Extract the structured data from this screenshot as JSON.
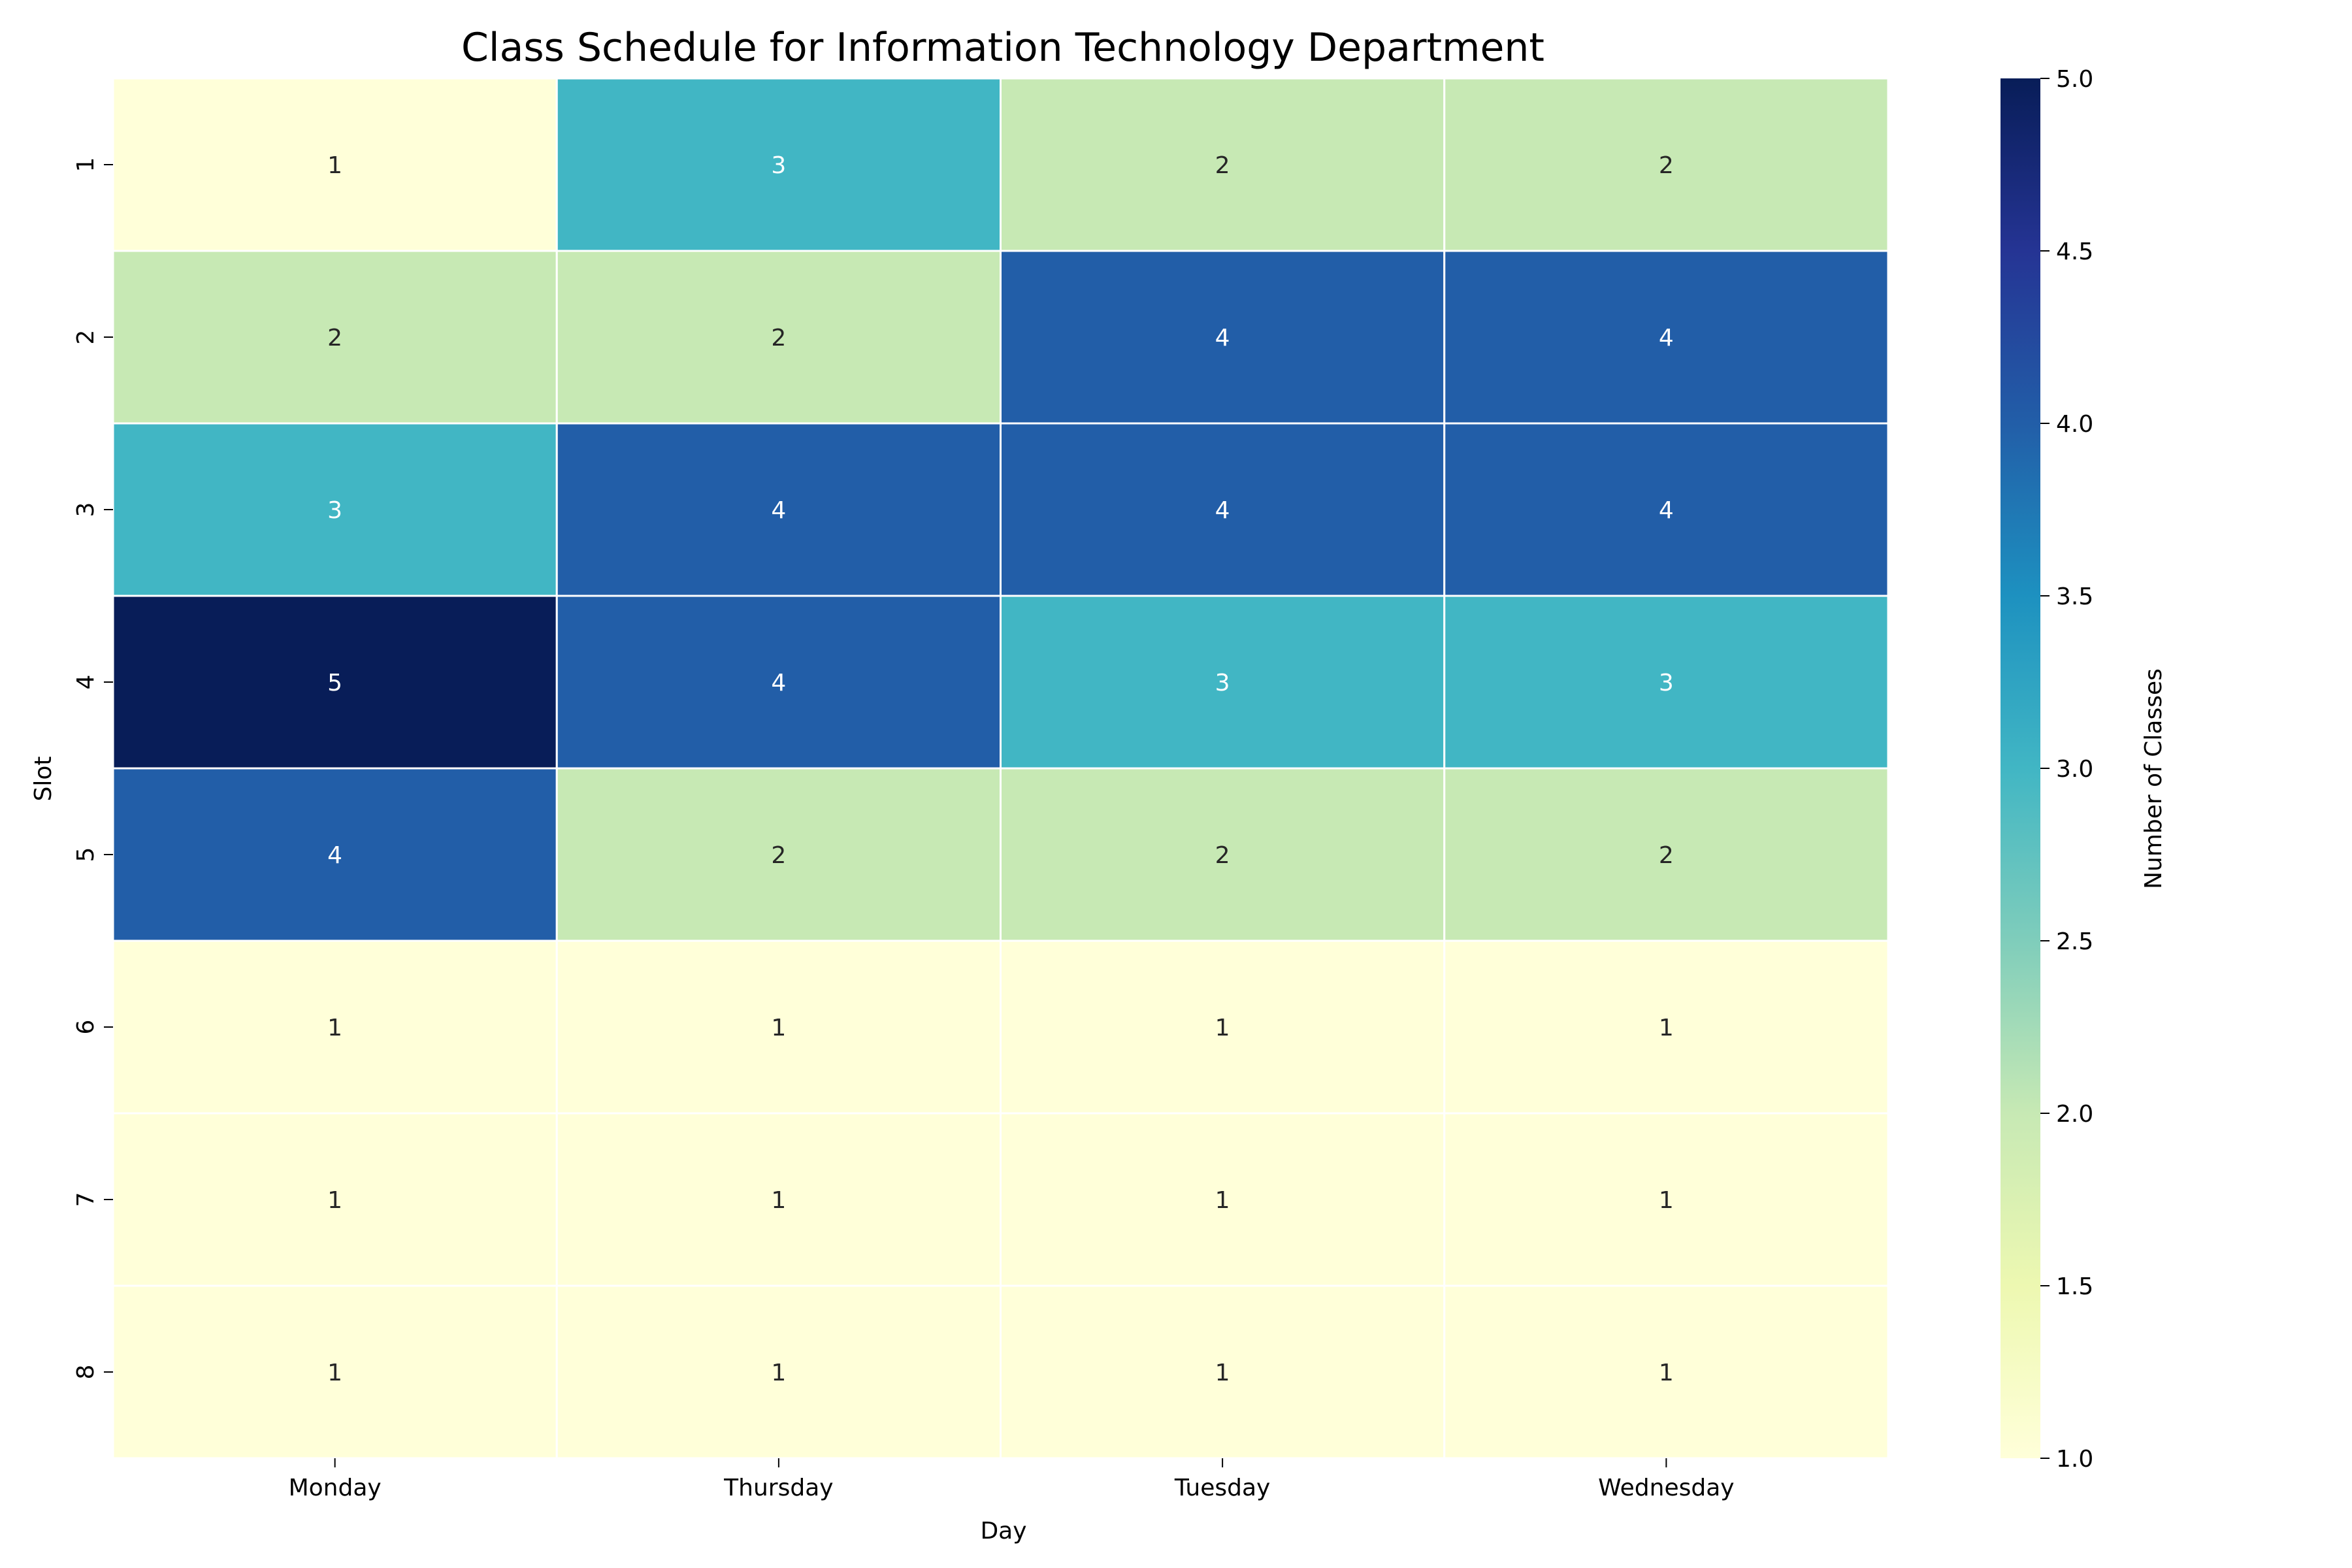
{
  "chart_data": {
    "type": "heatmap",
    "title": "Class Schedule for Information Technology Department",
    "xlabel": "Day",
    "ylabel": "Slot",
    "x_categories": [
      "Monday",
      "Thursday",
      "Tuesday",
      "Wednesday"
    ],
    "y_categories": [
      "1",
      "2",
      "3",
      "4",
      "5",
      "6",
      "7",
      "8"
    ],
    "values": [
      [
        1,
        3,
        2,
        2
      ],
      [
        2,
        2,
        4,
        4
      ],
      [
        3,
        4,
        4,
        4
      ],
      [
        5,
        4,
        3,
        3
      ],
      [
        4,
        2,
        2,
        2
      ],
      [
        1,
        1,
        1,
        1
      ],
      [
        1,
        1,
        1,
        1
      ],
      [
        1,
        1,
        1,
        1
      ]
    ],
    "colorbar": {
      "label": "Number of Classes",
      "range": [
        1.0,
        5.0
      ],
      "ticks": [
        "1.0",
        "1.5",
        "2.0",
        "2.5",
        "3.0",
        "3.5",
        "4.0",
        "4.5",
        "5.0"
      ]
    },
    "colormap": [
      "#ffffd9",
      "#edf8b1",
      "#c7e9b4",
      "#7fcdbb",
      "#41b6c4",
      "#1d91c0",
      "#225ea8",
      "#253494",
      "#081d58"
    ],
    "annotations": true,
    "grid_line_color": "#ffffff"
  }
}
